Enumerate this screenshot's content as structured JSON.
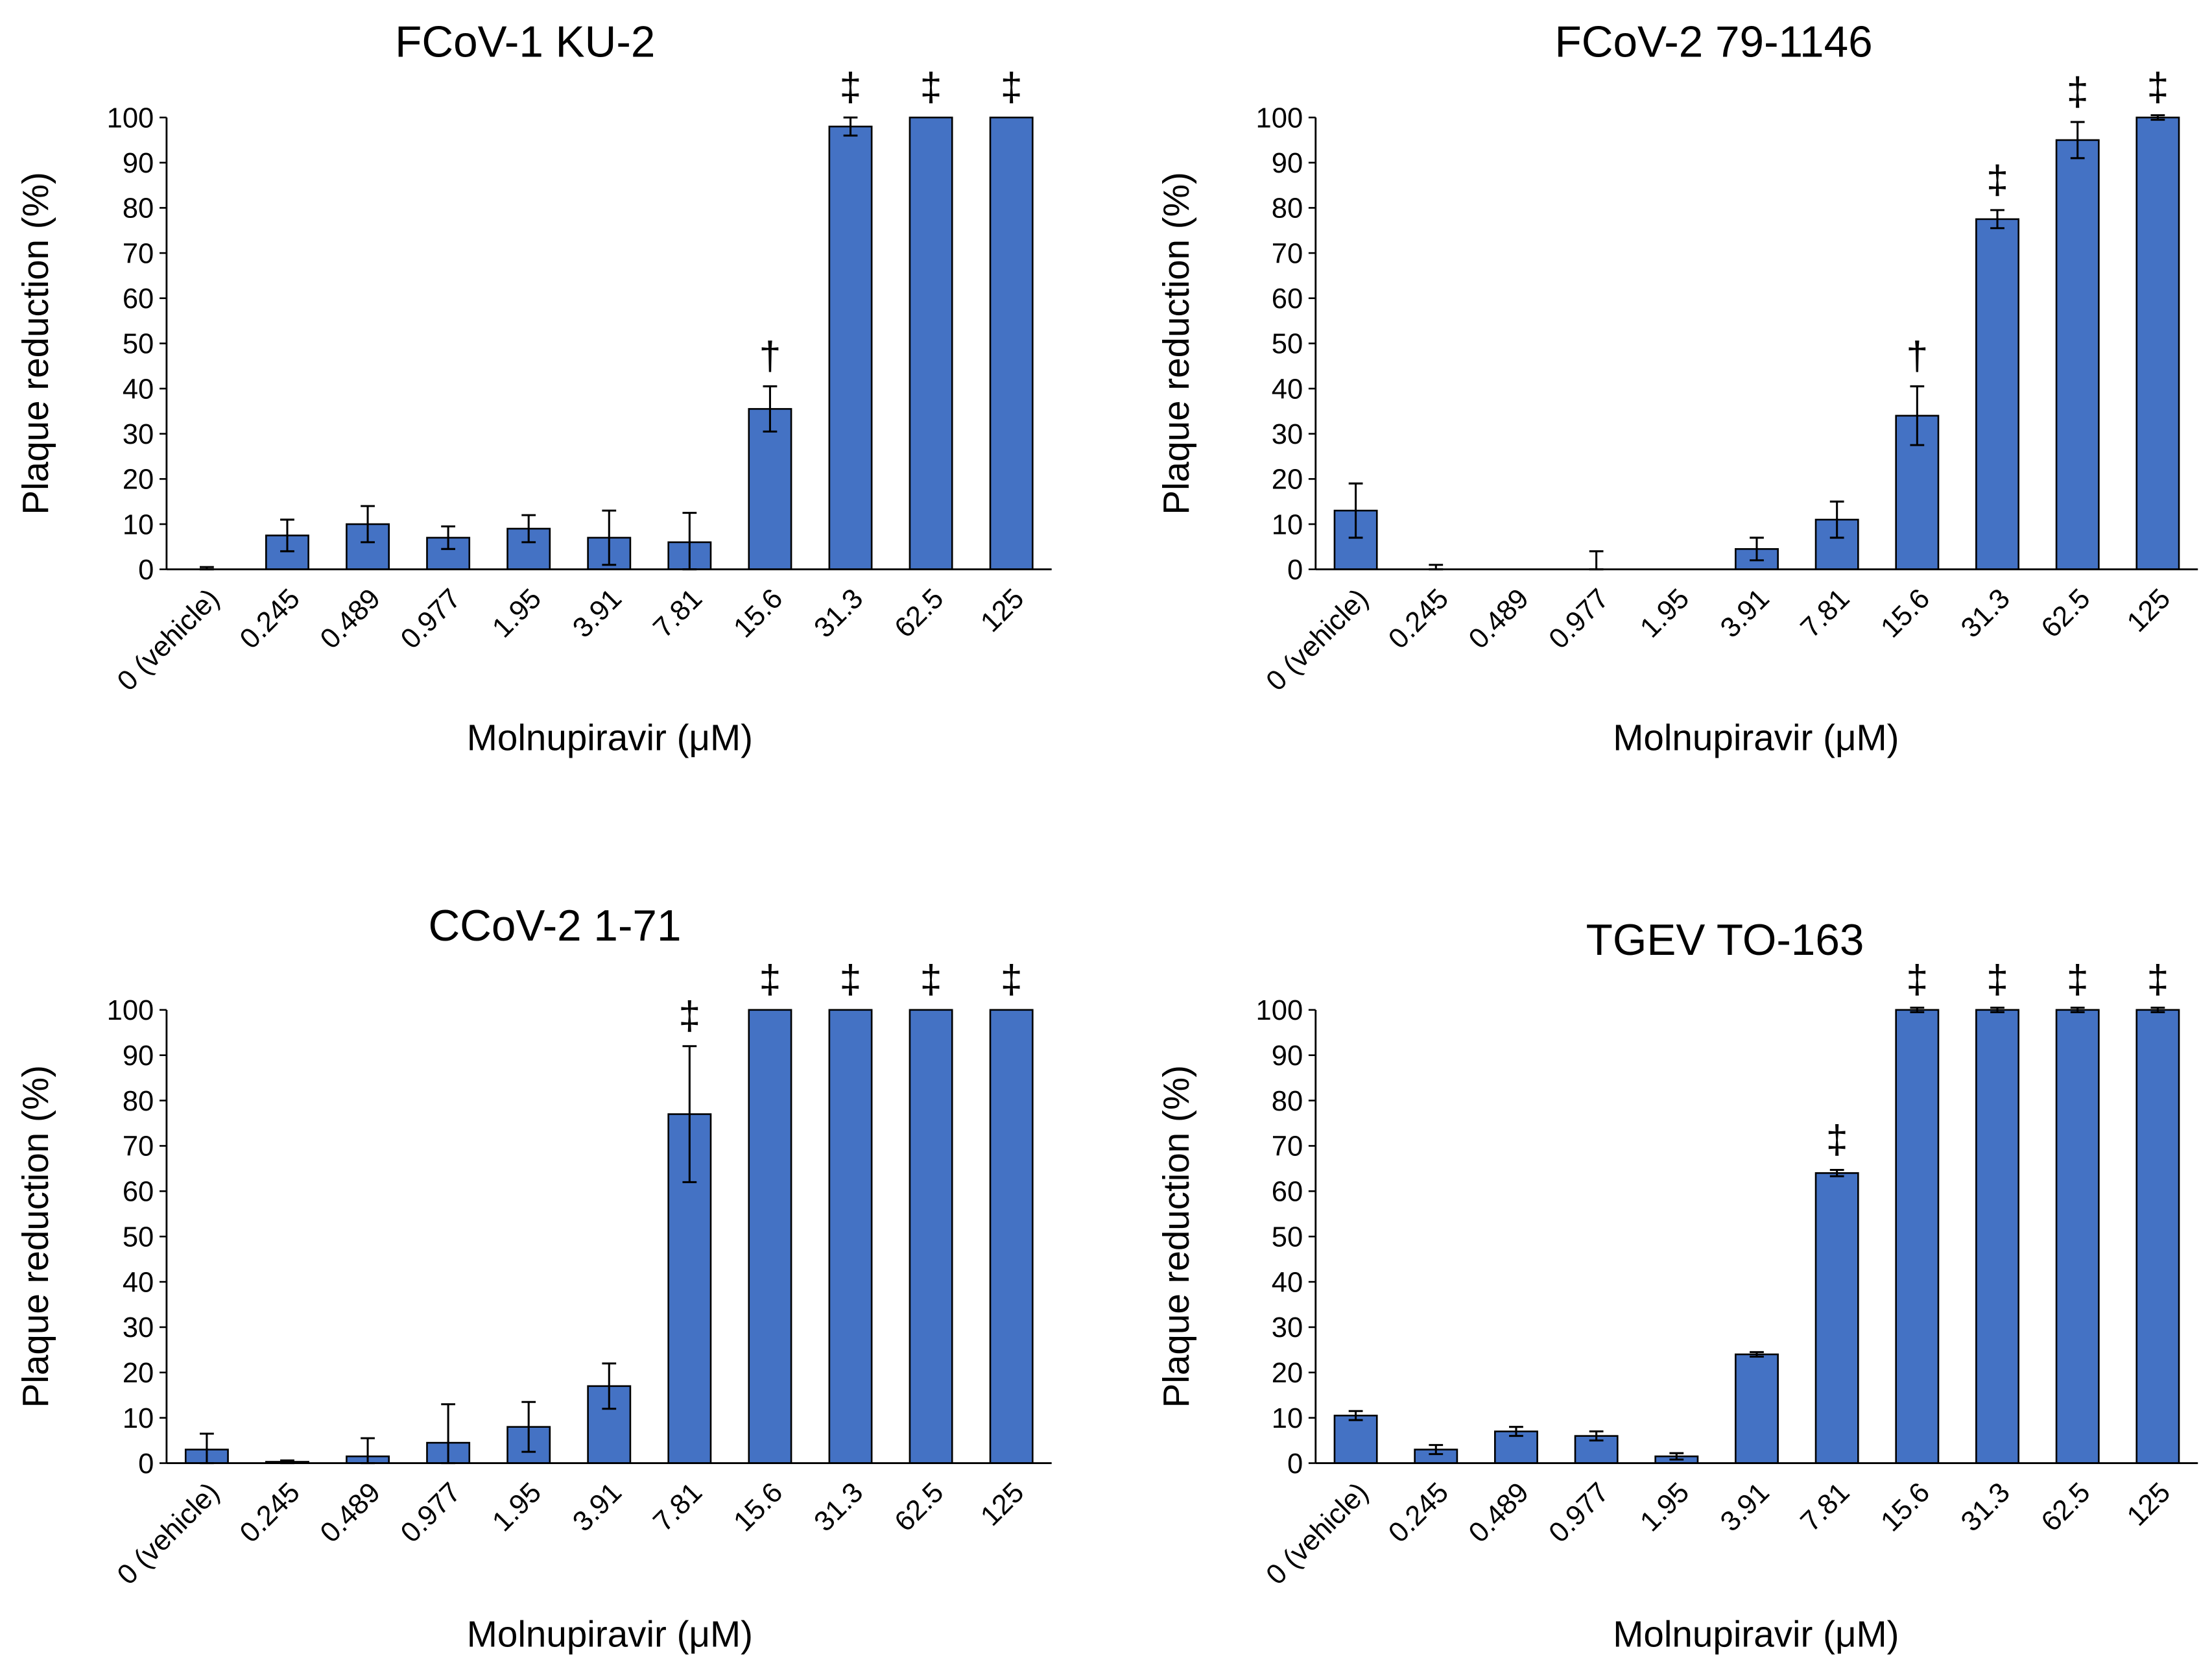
{
  "bar_color": "#4472C4",
  "chart_data": [
    {
      "type": "bar",
      "title": "FCoV-1 KU-2",
      "xlabel": "Molnupiravir (μM)",
      "ylabel": "Plaque reduction (%)",
      "ylim": [
        0,
        100
      ],
      "yticks": [
        0,
        10,
        20,
        30,
        40,
        50,
        60,
        70,
        80,
        90,
        100
      ],
      "categories": [
        "0 (vehicle)",
        "0.245",
        "0.489",
        "0.977",
        "1.95",
        "3.91",
        "7.81",
        "15.6",
        "31.3",
        "62.5",
        "125"
      ],
      "values": [
        0,
        7.5,
        10,
        7,
        9,
        7,
        6,
        35.5,
        98,
        100,
        100
      ],
      "errors": [
        0.5,
        3.5,
        4,
        2.5,
        3,
        6,
        6.5,
        5,
        2,
        0,
        0
      ],
      "annotations": [
        "",
        "",
        "",
        "",
        "",
        "",
        "",
        "†",
        "‡",
        "‡",
        "‡"
      ]
    },
    {
      "type": "bar",
      "title": "FCoV-2 79-1146",
      "xlabel": "Molnupiravir (μM)",
      "ylabel": "Plaque reduction (%)",
      "ylim": [
        0,
        100
      ],
      "yticks": [
        0,
        10,
        20,
        30,
        40,
        50,
        60,
        70,
        80,
        90,
        100
      ],
      "categories": [
        "0 (vehicle)",
        "0.245",
        "0.489",
        "0.977",
        "1.95",
        "3.91",
        "7.81",
        "15.6",
        "31.3",
        "62.5",
        "125"
      ],
      "values": [
        13,
        0,
        0,
        0,
        0,
        4.5,
        11,
        34,
        77.5,
        95,
        100
      ],
      "errors": [
        6,
        1,
        0,
        4,
        0,
        2.5,
        4,
        6.5,
        2,
        4,
        0.5
      ],
      "annotations": [
        "",
        "",
        "",
        "",
        "",
        "",
        "",
        "†",
        "‡",
        "‡",
        "‡"
      ]
    },
    {
      "type": "bar",
      "title": "CCoV-2 1-71",
      "xlabel": "Molnupiravir (μM)",
      "ylabel": "Plaque reduction (%)",
      "ylim": [
        0,
        100
      ],
      "yticks": [
        0,
        10,
        20,
        30,
        40,
        50,
        60,
        70,
        80,
        90,
        100
      ],
      "categories": [
        "0 (vehicle)",
        "0.245",
        "0.489",
        "0.977",
        "1.95",
        "3.91",
        "7.81",
        "15.6",
        "31.3",
        "62.5",
        "125"
      ],
      "values": [
        3,
        0.3,
        1.5,
        4.5,
        8,
        17,
        77,
        100,
        100,
        100,
        100
      ],
      "errors": [
        3.5,
        0.3,
        4,
        8.5,
        5.5,
        5,
        15,
        0,
        0,
        0,
        0
      ],
      "annotations": [
        "",
        "",
        "",
        "",
        "",
        "",
        "‡",
        "‡",
        "‡",
        "‡",
        "‡"
      ]
    },
    {
      "type": "bar",
      "title": "TGEV TO-163",
      "xlabel": "Molnupiravir (μM)",
      "ylabel": "Plaque reduction (%)",
      "ylim": [
        0,
        100
      ],
      "yticks": [
        0,
        10,
        20,
        30,
        40,
        50,
        60,
        70,
        80,
        90,
        100
      ],
      "categories": [
        "0 (vehicle)",
        "0.245",
        "0.489",
        "0.977",
        "1.95",
        "3.91",
        "7.81",
        "15.6",
        "31.3",
        "62.5",
        "125"
      ],
      "values": [
        10.5,
        3,
        7,
        6,
        1.5,
        24,
        64,
        100,
        100,
        100,
        100
      ],
      "errors": [
        1,
        1,
        1,
        1,
        0.7,
        0.5,
        0.7,
        0.5,
        0.5,
        0.5,
        0.5
      ],
      "annotations": [
        "",
        "",
        "",
        "",
        "",
        "",
        "‡",
        "‡",
        "‡",
        "‡",
        "‡"
      ]
    }
  ]
}
